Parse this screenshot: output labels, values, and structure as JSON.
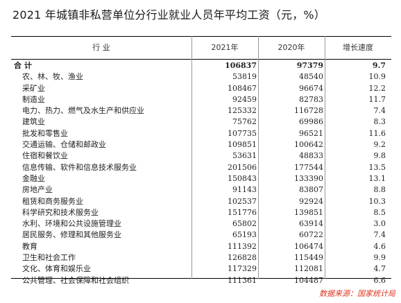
{
  "title": "2021 年城镇非私营单位分行业就业人员年平均工资（元，%）",
  "table": {
    "headers": {
      "industry": "行 业",
      "y2021": "2021年",
      "y2020": "2020年",
      "growth": "增长速度"
    },
    "total": {
      "name": "合 计",
      "y2021": "106837",
      "y2020": "97379",
      "growth": "9.7"
    },
    "rows": [
      {
        "name": "农、林、牧、渔业",
        "y2021": "53819",
        "y2020": "48540",
        "growth": "10.9"
      },
      {
        "name": "采矿业",
        "y2021": "108467",
        "y2020": "96674",
        "growth": "12.2"
      },
      {
        "name": "制造业",
        "y2021": "92459",
        "y2020": "82783",
        "growth": "11.7"
      },
      {
        "name": "电力、热力、燃气及水生产和供应业",
        "y2021": "125332",
        "y2020": "116728",
        "growth": "7.4"
      },
      {
        "name": "建筑业",
        "y2021": "75762",
        "y2020": "69986",
        "growth": "8.3"
      },
      {
        "name": "批发和零售业",
        "y2021": "107735",
        "y2020": "96521",
        "growth": "11.6"
      },
      {
        "name": "交通运输、仓储和邮政业",
        "y2021": "109851",
        "y2020": "100642",
        "growth": "9.2"
      },
      {
        "name": "住宿和餐饮业",
        "y2021": "53631",
        "y2020": "48833",
        "growth": "9.8"
      },
      {
        "name": "信息传输、软件和信息技术服务业",
        "y2021": "201506",
        "y2020": "177544",
        "growth": "13.5"
      },
      {
        "name": "金融业",
        "y2021": "150843",
        "y2020": "133390",
        "growth": "13.1"
      },
      {
        "name": "房地产业",
        "y2021": "91143",
        "y2020": "83807",
        "growth": "8.8"
      },
      {
        "name": "租赁和商务服务业",
        "y2021": "102537",
        "y2020": "92924",
        "growth": "10.3"
      },
      {
        "name": "科学研究和技术服务业",
        "y2021": "151776",
        "y2020": "139851",
        "growth": "8.5"
      },
      {
        "name": "水利、环境和公共设施管理业",
        "y2021": "65802",
        "y2020": "63914",
        "growth": "3.0"
      },
      {
        "name": "居民服务、修理和其他服务业",
        "y2021": "65193",
        "y2020": "60722",
        "growth": "7.4"
      },
      {
        "name": "教育",
        "y2021": "111392",
        "y2020": "106474",
        "growth": "4.6"
      },
      {
        "name": "卫生和社会工作",
        "y2021": "126828",
        "y2020": "115449",
        "growth": "9.9"
      },
      {
        "name": "文化、体育和娱乐业",
        "y2021": "117329",
        "y2020": "112081",
        "growth": "4.7"
      },
      {
        "name": "公共管理、社会保障和社会组织",
        "y2021": "111361",
        "y2020": "104487",
        "growth": "6.6"
      }
    ]
  },
  "source": "数据来源：国家统计局",
  "colors": {
    "source": "#e0321e"
  }
}
